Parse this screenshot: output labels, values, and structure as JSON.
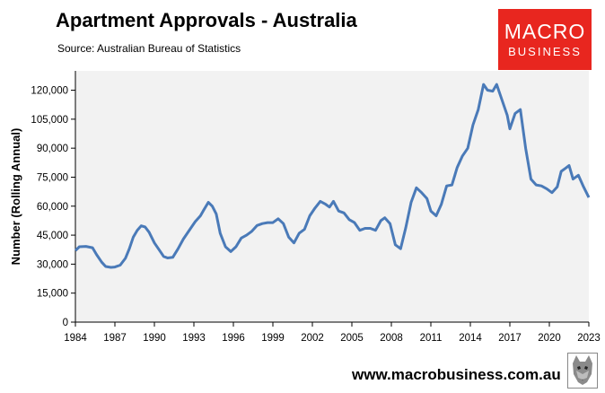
{
  "header": {
    "title": "Apartment Approvals - Australia",
    "subtitle": "Source: Australian Bureau of Statistics"
  },
  "logo": {
    "line1": "MACRO",
    "line2": "BUSINESS"
  },
  "footer": {
    "website": "www.macrobusiness.com.au"
  },
  "chart_data": {
    "type": "line",
    "title": "Apartment Approvals - Australia",
    "ylabel": "Number (Rolling Annual)",
    "xlabel": "",
    "xlim": [
      1984,
      2023
    ],
    "ylim": [
      0,
      130000
    ],
    "grid": false,
    "line_color": "#4a7ab8",
    "plot_background": "#f2f2f2",
    "x_ticks": [
      1984,
      1987,
      1990,
      1993,
      1996,
      1999,
      2002,
      2005,
      2008,
      2011,
      2014,
      2017,
      2020,
      2023
    ],
    "x_tick_labels": [
      "1984",
      "1987",
      "1990",
      "1993",
      "1996",
      "1999",
      "2002",
      "2005",
      "2008",
      "2011",
      "2014",
      "2017",
      "2020",
      "2023"
    ],
    "y_ticks": [
      0,
      15000,
      30000,
      45000,
      60000,
      75000,
      90000,
      105000,
      120000
    ],
    "y_tick_labels": [
      "0",
      "15,000",
      "30,000",
      "45,000",
      "60,000",
      "75,000",
      "90,000",
      "105,000",
      "120,000"
    ],
    "series": [
      {
        "x": [
          1984.0,
          1984.3,
          1984.8,
          1985.3,
          1985.6,
          1986.0,
          1986.3,
          1986.7,
          1987.0,
          1987.4,
          1987.8,
          1988.1,
          1988.4,
          1988.7,
          1989.0,
          1989.3,
          1989.6,
          1990.0,
          1990.4,
          1990.7,
          1991.0,
          1991.4,
          1991.8,
          1992.2,
          1992.7,
          1993.1,
          1993.5,
          1993.7,
          1994.1,
          1994.4,
          1994.7,
          1995.0,
          1995.4,
          1995.8,
          1996.2,
          1996.6,
          1997.0,
          1997.4,
          1997.8,
          1998.2,
          1998.6,
          1999.0,
          1999.4,
          1999.8,
          2000.2,
          2000.6,
          2001.0,
          2001.4,
          2001.8,
          2002.2,
          2002.6,
          2003.0,
          2003.3,
          2003.6,
          2004.0,
          2004.4,
          2004.8,
          2005.2,
          2005.6,
          2006.0,
          2006.4,
          2006.8,
          2007.2,
          2007.5,
          2007.9,
          2008.3,
          2008.7,
          2009.1,
          2009.5,
          2009.9,
          2010.3,
          2010.7,
          2011.0,
          2011.4,
          2011.8,
          2012.2,
          2012.6,
          2013.0,
          2013.4,
          2013.8,
          2014.2,
          2014.6,
          2015.0,
          2015.3,
          2015.7,
          2016.0,
          2016.4,
          2016.8,
          2017.0,
          2017.4,
          2017.8,
          2018.2,
          2018.6,
          2019.0,
          2019.4,
          2019.8,
          2020.2,
          2020.6,
          2020.9,
          2021.2,
          2021.5,
          2021.8,
          2022.2,
          2022.6,
          2023.0
        ],
        "y": [
          37000,
          39000,
          39200,
          38500,
          35000,
          31000,
          28800,
          28300,
          28500,
          29500,
          33000,
          38000,
          44000,
          47500,
          49800,
          49200,
          46500,
          41000,
          37000,
          34000,
          33200,
          33500,
          38000,
          43000,
          48000,
          52000,
          55000,
          57500,
          62000,
          60000,
          56000,
          46000,
          39000,
          36500,
          39000,
          43500,
          45000,
          47000,
          50000,
          51000,
          51500,
          51500,
          53500,
          51000,
          44000,
          41000,
          46000,
          48000,
          55000,
          59000,
          62500,
          61000,
          59500,
          62500,
          57500,
          56500,
          53000,
          51500,
          47500,
          48500,
          48500,
          47500,
          52500,
          54000,
          51000,
          40000,
          38000,
          49000,
          62000,
          69500,
          67000,
          64000,
          57500,
          55000,
          61000,
          70500,
          71000,
          80000,
          86000,
          90000,
          102000,
          110000,
          123000,
          120000,
          119500,
          123000,
          115000,
          107000,
          100000,
          108000,
          110000,
          90000,
          74000,
          71000,
          70500,
          69000,
          67000,
          70000,
          78000,
          79500,
          81000,
          74000,
          76000,
          70000,
          64500
        ]
      }
    ]
  }
}
